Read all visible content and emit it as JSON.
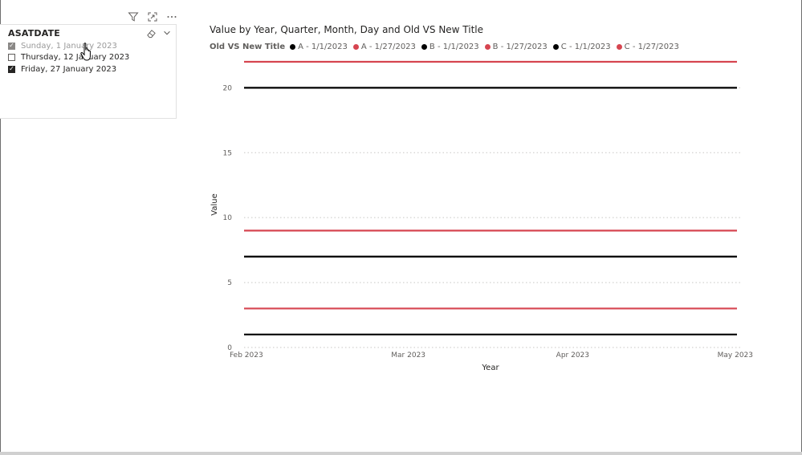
{
  "slicer": {
    "title": "ASATDATE",
    "items": [
      {
        "label": "Sunday, 1 January 2023",
        "checked": true,
        "muted": true
      },
      {
        "label": "Thursday, 12 January 2023",
        "checked": false,
        "muted": false
      },
      {
        "label": "Friday, 27 January 2023",
        "checked": true,
        "muted": false
      }
    ],
    "header_icons": [
      "filter-icon",
      "focus-mode-icon",
      "more-options-icon"
    ],
    "tool_icons": [
      "eraser-icon",
      "chevron-down-icon"
    ]
  },
  "chart": {
    "title": "Value by Year, Quarter, Month, Day and Old VS New Title",
    "legend_title": "Old VS New Title",
    "colors": {
      "black": "#000000",
      "red": "#d64550",
      "grid": "#c8c6c4"
    }
  },
  "chart_data": {
    "type": "line",
    "title": "Value by Year, Quarter, Month, Day and Old VS New Title",
    "xlabel": "Year",
    "ylabel": "Value",
    "x_ticks": [
      "Feb 2023",
      "Mar 2023",
      "Apr 2023",
      "May 2023"
    ],
    "y_ticks": [
      0,
      5,
      10,
      15,
      20
    ],
    "ylim": [
      0,
      22
    ],
    "grid": true,
    "legend_position": "top-left",
    "series": [
      {
        "name": "A - 1/1/2023",
        "color": "#000000",
        "values": [
          1,
          1,
          1,
          1
        ]
      },
      {
        "name": "A - 1/27/2023",
        "color": "#d64550",
        "values": [
          3,
          3,
          3,
          3
        ]
      },
      {
        "name": "B - 1/1/2023",
        "color": "#000000",
        "values": [
          7,
          7,
          7,
          7
        ]
      },
      {
        "name": "B - 1/27/2023",
        "color": "#d64550",
        "values": [
          9,
          9,
          9,
          9
        ]
      },
      {
        "name": "C - 1/1/2023",
        "color": "#000000",
        "values": [
          20,
          20,
          20,
          20
        ]
      },
      {
        "name": "C - 1/27/2023",
        "color": "#d64550",
        "values": [
          22,
          22,
          22,
          22
        ]
      }
    ]
  }
}
